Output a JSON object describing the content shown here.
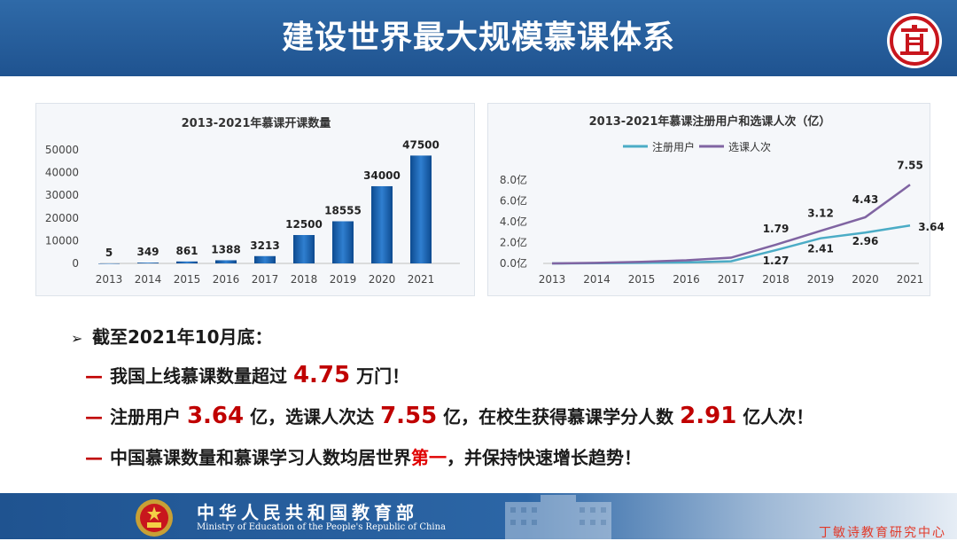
{
  "header": {
    "title": "建设世界最大规模慕课体系"
  },
  "chart_data": [
    {
      "type": "bar",
      "title": "2013-2021年慕课开课数量",
      "categories": [
        "2013",
        "2014",
        "2015",
        "2016",
        "2017",
        "2018",
        "2019",
        "2020",
        "2021"
      ],
      "values": [
        5,
        349,
        861,
        1388,
        3213,
        12500,
        18555,
        34000,
        47500
      ],
      "yticks": [
        "50000",
        "40000",
        "30000",
        "20000",
        "10000",
        "0"
      ],
      "ylim": [
        0,
        50000
      ],
      "grid": false,
      "color": "#1f66b3"
    },
    {
      "type": "line",
      "title": "2013-2021年慕课注册用户和选课人次（亿）",
      "categories": [
        "2013",
        "2014",
        "2015",
        "2016",
        "2017",
        "2018",
        "2019",
        "2020",
        "2021"
      ],
      "yticks": [
        "8.0亿",
        "6.0亿",
        "4.0亿",
        "2.0亿",
        "0.0亿"
      ],
      "ylim": [
        0,
        8
      ],
      "legend_position": "top",
      "grid": false,
      "series": [
        {
          "name": "注册用户",
          "color": "#4bacc6",
          "values": [
            0.0,
            0.02,
            0.05,
            0.1,
            0.2,
            1.27,
            2.41,
            2.96,
            3.64
          ],
          "labels": [
            "",
            "",
            "",
            "",
            "",
            "1.27",
            "2.41",
            "2.96",
            "3.64"
          ]
        },
        {
          "name": "选课人次",
          "color": "#8064a2",
          "values": [
            0.0,
            0.05,
            0.15,
            0.3,
            0.55,
            1.79,
            3.12,
            4.43,
            7.55
          ],
          "labels": [
            "",
            "",
            "",
            "",
            "",
            "1.79",
            "3.12",
            "4.43",
            "7.55"
          ]
        }
      ]
    }
  ],
  "summary": {
    "arrow": "➢",
    "heading": "截至2021年10月底：",
    "dash": "—",
    "line1": {
      "pre": "我国上线慕课数量超过 ",
      "value": "4.75",
      "post": " 万门！"
    },
    "line2": {
      "pre": "注册用户 ",
      "value1": "3.64",
      "mid1": " 亿，选课人次达 ",
      "value2": "7.55",
      "mid2": " 亿，在校生获得慕课学分人数 ",
      "value3": "2.91",
      "post": " 亿人次！"
    },
    "line3": {
      "pre": "中国慕课数量和慕课学习人数均居世界",
      "highlight": "第一",
      "post": "，并保持快速增长趋势！"
    }
  },
  "footer": {
    "ministry_cn": "中华人民共和国教育部",
    "ministry_en": "Ministry of Education of the People's Republic of China",
    "watermark": "丁敏诗教育研究中心"
  }
}
